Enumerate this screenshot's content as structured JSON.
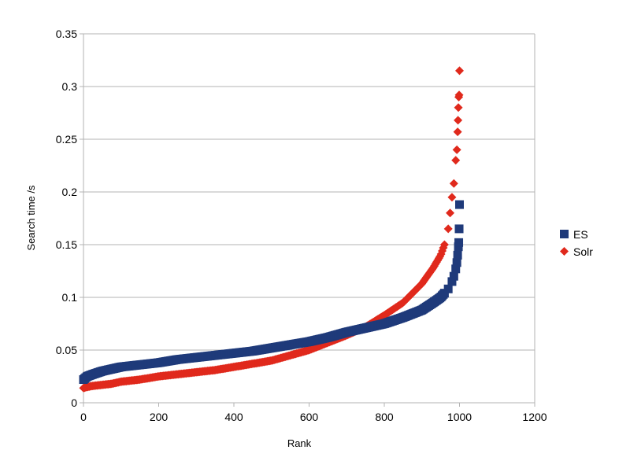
{
  "chart_data": {
    "type": "scatter",
    "title": "",
    "xlabel": "Rank",
    "ylabel": "Search time /s",
    "xlim": [
      0,
      1200
    ],
    "ylim": [
      0,
      0.35
    ],
    "xticks": [
      "0",
      "200",
      "400",
      "600",
      "800",
      "1000",
      "1200"
    ],
    "yticks": [
      "0",
      "0.05",
      "0.1",
      "0.15",
      "0.2",
      "0.25",
      "0.3",
      "0.35"
    ],
    "grid": "horizontal",
    "legend_position": "right",
    "series": [
      {
        "name": "ES",
        "marker": "square",
        "color": "#1f3a7a",
        "points": [
          [
            0,
            0.022
          ],
          [
            10,
            0.025
          ],
          [
            25,
            0.027
          ],
          [
            50,
            0.03
          ],
          [
            75,
            0.032
          ],
          [
            100,
            0.034
          ],
          [
            150,
            0.036
          ],
          [
            200,
            0.038
          ],
          [
            250,
            0.041
          ],
          [
            300,
            0.043
          ],
          [
            350,
            0.045
          ],
          [
            400,
            0.047
          ],
          [
            450,
            0.049
          ],
          [
            500,
            0.052
          ],
          [
            550,
            0.055
          ],
          [
            600,
            0.058
          ],
          [
            650,
            0.062
          ],
          [
            700,
            0.067
          ],
          [
            750,
            0.071
          ],
          [
            800,
            0.075
          ],
          [
            850,
            0.081
          ],
          [
            900,
            0.088
          ],
          [
            930,
            0.095
          ],
          [
            950,
            0.1
          ],
          [
            960,
            0.104
          ],
          [
            970,
            0.108
          ],
          [
            980,
            0.115
          ],
          [
            985,
            0.12
          ],
          [
            990,
            0.127
          ],
          [
            993,
            0.133
          ],
          [
            995,
            0.14
          ],
          [
            997,
            0.148
          ],
          [
            998,
            0.152
          ],
          [
            999,
            0.165
          ],
          [
            1000,
            0.188
          ]
        ]
      },
      {
        "name": "Solr",
        "marker": "diamond",
        "color": "#e0291c",
        "points": [
          [
            0,
            0.014
          ],
          [
            10,
            0.015
          ],
          [
            25,
            0.016
          ],
          [
            50,
            0.017
          ],
          [
            75,
            0.018
          ],
          [
            100,
            0.02
          ],
          [
            150,
            0.022
          ],
          [
            200,
            0.025
          ],
          [
            250,
            0.027
          ],
          [
            300,
            0.029
          ],
          [
            350,
            0.031
          ],
          [
            400,
            0.034
          ],
          [
            450,
            0.037
          ],
          [
            500,
            0.04
          ],
          [
            550,
            0.045
          ],
          [
            600,
            0.05
          ],
          [
            650,
            0.057
          ],
          [
            700,
            0.064
          ],
          [
            750,
            0.072
          ],
          [
            800,
            0.083
          ],
          [
            850,
            0.095
          ],
          [
            900,
            0.113
          ],
          [
            930,
            0.128
          ],
          [
            950,
            0.14
          ],
          [
            960,
            0.15
          ],
          [
            970,
            0.165
          ],
          [
            975,
            0.18
          ],
          [
            980,
            0.195
          ],
          [
            985,
            0.208
          ],
          [
            990,
            0.23
          ],
          [
            993,
            0.24
          ],
          [
            995,
            0.257
          ],
          [
            996,
            0.268
          ],
          [
            997,
            0.28
          ],
          [
            998,
            0.29
          ],
          [
            999,
            0.292
          ],
          [
            1000,
            0.315
          ]
        ]
      }
    ]
  }
}
